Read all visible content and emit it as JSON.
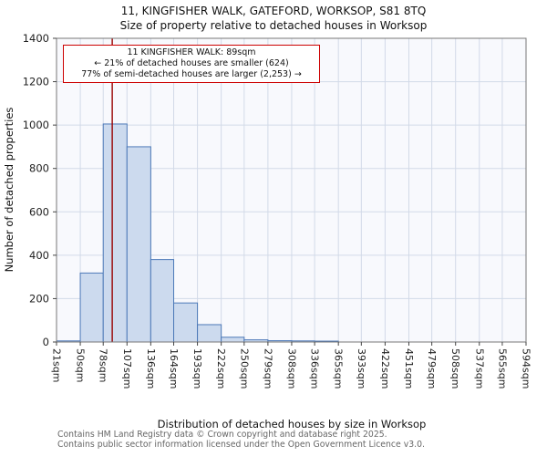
{
  "chart_data": {
    "type": "bar",
    "title": "11, KINGFISHER WALK, GATEFORD, WORKSOP, S81 8TQ",
    "subtitle": "Size of property relative to detached houses in Worksop",
    "xlabel": "Distribution of detached houses by size in Worksop",
    "ylabel": "Number of detached properties",
    "bin_edges_sqm": [
      21,
      50,
      78,
      107,
      136,
      164,
      193,
      222,
      250,
      279,
      308,
      336,
      365,
      393,
      422,
      451,
      479,
      508,
      537,
      565,
      594
    ],
    "categories": [
      "21sqm",
      "50sqm",
      "78sqm",
      "107sqm",
      "136sqm",
      "164sqm",
      "193sqm",
      "222sqm",
      "250sqm",
      "279sqm",
      "308sqm",
      "336sqm",
      "365sqm",
      "393sqm",
      "422sqm",
      "451sqm",
      "479sqm",
      "508sqm",
      "537sqm",
      "565sqm",
      "594sqm"
    ],
    "values": [
      5,
      318,
      1005,
      900,
      380,
      180,
      80,
      22,
      10,
      6,
      5,
      4,
      0,
      0,
      0,
      0,
      0,
      0,
      0,
      0
    ],
    "ylim": [
      0,
      1400
    ],
    "yticks": [
      0,
      200,
      400,
      600,
      800,
      1000,
      1200,
      1400
    ],
    "grid": true,
    "marker": {
      "value_sqm": 89,
      "color": "#990000"
    },
    "annotation": {
      "border_color": "#cc0000",
      "lines": [
        "11 KINGFISHER WALK: 89sqm",
        "← 21% of detached houses are smaller (624)",
        "77% of semi-detached houses are larger (2,253) →"
      ]
    },
    "colors": {
      "bar_fill": "#ccdaee",
      "bar_stroke": "#4d79b8",
      "grid_color": "#d2dae8",
      "frame_color": "#777777",
      "plot_bg": "#f8f9fd",
      "tick_color": "#444444"
    }
  },
  "footer": {
    "line1": "Contains HM Land Registry data © Crown copyright and database right 2025.",
    "line2": "Contains public sector information licensed under the Open Government Licence v3.0."
  }
}
